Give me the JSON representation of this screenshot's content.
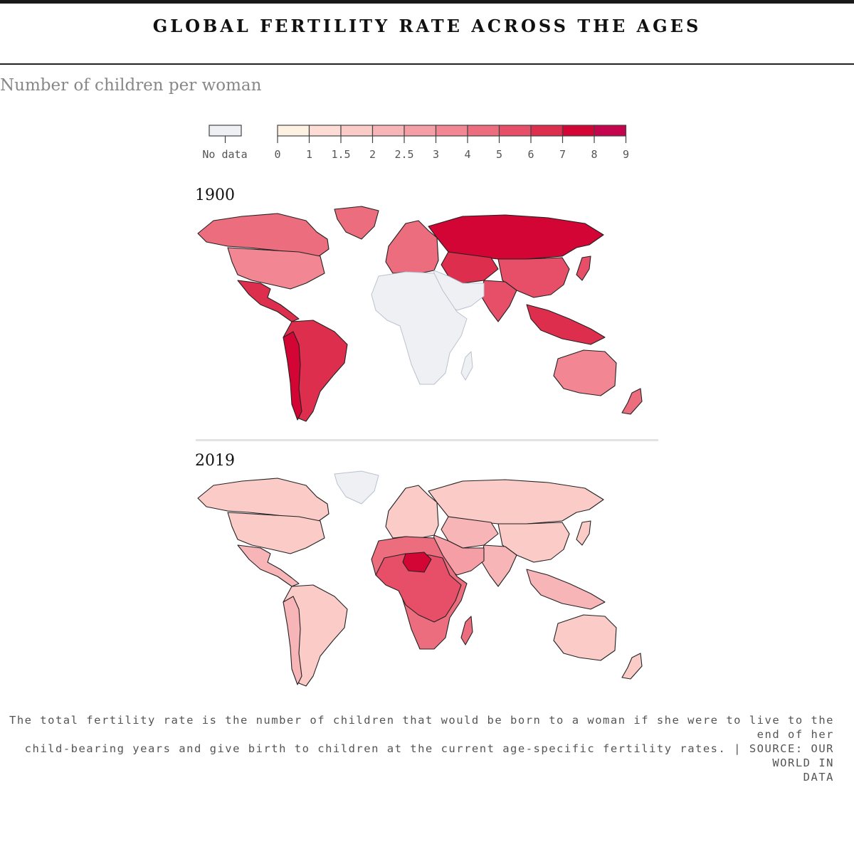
{
  "title": "GLOBAL FERTILITY RATE ACROSS THE AGES",
  "subtitle": "Number of children per woman",
  "legend": {
    "no_data_label": "No data",
    "no_data_color": "#eef0f3",
    "bins": [
      {
        "from": "0",
        "color": "#fdf1e1"
      },
      {
        "from": "1",
        "color": "#fcdcd4"
      },
      {
        "from": "1.5",
        "color": "#fbcbc8"
      },
      {
        "from": "2",
        "color": "#f8b5b8"
      },
      {
        "from": "2.5",
        "color": "#f59ea6"
      },
      {
        "from": "3",
        "color": "#f28693"
      },
      {
        "from": "4",
        "color": "#ec6d7e"
      },
      {
        "from": "5",
        "color": "#e64f67"
      },
      {
        "from": "6",
        "color": "#dd2e4d"
      },
      {
        "from": "7",
        "color": "#d30534"
      },
      {
        "from": "8",
        "color": "#c4054d"
      }
    ],
    "end_label": "9"
  },
  "maps": [
    {
      "year": "1900",
      "regions": {
        "north_america": {
          "value": "4",
          "color": "#ec6d7e"
        },
        "greenland": {
          "value": "4",
          "color": "#ec6d7e"
        },
        "usa": {
          "value": "3",
          "color": "#f28693"
        },
        "mexico_central_america": {
          "value": "6",
          "color": "#dd2e4d"
        },
        "south_america": {
          "value": "6",
          "color": "#dd2e4d"
        },
        "south_america_west": {
          "value": "7",
          "color": "#d30534"
        },
        "europe": {
          "value": "4",
          "color": "#ec6d7e"
        },
        "russia": {
          "value": "7",
          "color": "#d30534"
        },
        "central_asia": {
          "value": "6",
          "color": "#dd2e4d"
        },
        "china": {
          "value": "5",
          "color": "#e64f67"
        },
        "india": {
          "value": "5",
          "color": "#e64f67"
        },
        "middle_east": {
          "value": "no data",
          "color": "#eef0f3"
        },
        "africa": {
          "value": "no data",
          "color": "#eef0f3"
        },
        "japan": {
          "value": "5",
          "color": "#e64f67"
        },
        "southeast_asia": {
          "value": "6",
          "color": "#dd2e4d"
        },
        "australia": {
          "value": "3",
          "color": "#f28693"
        },
        "new_zealand": {
          "value": "4",
          "color": "#ec6d7e"
        }
      }
    },
    {
      "year": "2019",
      "regions": {
        "north_america": {
          "value": "1.5",
          "color": "#fbcbc8"
        },
        "greenland": {
          "value": "no data",
          "color": "#eef0f3"
        },
        "usa": {
          "value": "1.5",
          "color": "#fbcbc8"
        },
        "mexico_central_america": {
          "value": "2",
          "color": "#f8b5b8"
        },
        "south_america": {
          "value": "1.5",
          "color": "#fbcbc8"
        },
        "south_america_west": {
          "value": "2",
          "color": "#f8b5b8"
        },
        "europe": {
          "value": "1.5",
          "color": "#fbcbc8"
        },
        "russia": {
          "value": "1.5",
          "color": "#fbcbc8"
        },
        "central_asia": {
          "value": "2",
          "color": "#f8b5b8"
        },
        "china": {
          "value": "1.5",
          "color": "#fbcbc8"
        },
        "india": {
          "value": "2",
          "color": "#f8b5b8"
        },
        "middle_east": {
          "value": "2.5",
          "color": "#f59ea6"
        },
        "africa": {
          "value": "4",
          "color": "#ec6d7e"
        },
        "africa_sahel": {
          "value": "5",
          "color": "#e64f67"
        },
        "niger": {
          "value": "7",
          "color": "#d30534"
        },
        "japan": {
          "value": "1.5",
          "color": "#fbcbc8"
        },
        "southeast_asia": {
          "value": "2",
          "color": "#f8b5b8"
        },
        "australia": {
          "value": "1.5",
          "color": "#fbcbc8"
        },
        "new_zealand": {
          "value": "1.5",
          "color": "#fbcbc8"
        }
      }
    }
  ],
  "footnote": {
    "line1": "The total fertility rate is the number of children that would be born to a woman if she were to live to the end of her",
    "line2": "child-bearing years and give birth to children at the current age-specific fertility rates. | SOURCE: OUR WORLD IN",
    "line3": "DATA"
  }
}
